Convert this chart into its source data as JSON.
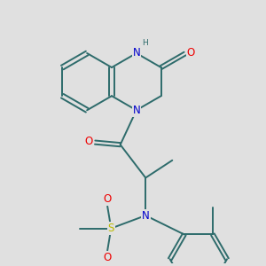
{
  "background_color": "#e0e0e0",
  "bond_color": "#2d6b6b",
  "bond_width": 1.4,
  "atom_colors": {
    "N": "#0000cc",
    "O": "#ee0000",
    "S": "#bbbb00",
    "C": "#2d6b6b",
    "H": "#2d6b6b"
  },
  "fs": 8.5,
  "fss": 6.5,
  "dbl_off": 0.045,
  "ring_r": 0.62
}
